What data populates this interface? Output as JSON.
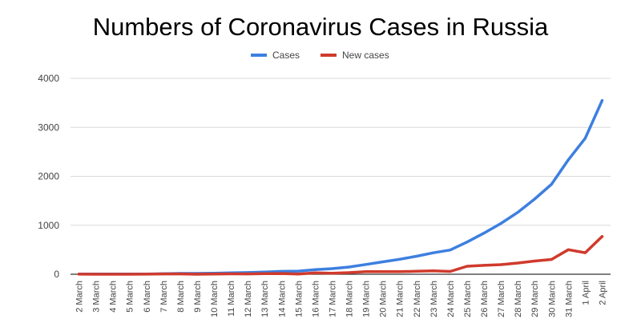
{
  "chart_data": {
    "type": "line",
    "title": "Numbers of Coronavirus Cases in Russia",
    "xlabel": "",
    "ylabel": "",
    "ylim": [
      0,
      4000
    ],
    "yticks": [
      0,
      1000,
      2000,
      3000,
      4000
    ],
    "grid": true,
    "legend_position": "top-center",
    "categories": [
      "2 March",
      "3 March",
      "4 March",
      "5 March",
      "6 March",
      "7 March",
      "8 March",
      "9 March",
      "10 March",
      "11 March",
      "12 March",
      "13 March",
      "14 March",
      "15 March",
      "16 March",
      "17 March",
      "18 March",
      "19 March",
      "20 March",
      "21 March",
      "22 March",
      "23 March",
      "24 March",
      "25 March",
      "26 March",
      "27 March",
      "28 March",
      "29 March",
      "30 March",
      "31 March",
      "1 April",
      "2 April"
    ],
    "series": [
      {
        "name": "Cases",
        "color": "#3d7fe0",
        "values": [
          3,
          3,
          3,
          3,
          4,
          10,
          17,
          17,
          20,
          28,
          34,
          45,
          59,
          63,
          93,
          114,
          147,
          199,
          253,
          306,
          367,
          438,
          495,
          658,
          840,
          1036,
          1264,
          1534,
          1836,
          2337,
          2777,
          3548
        ]
      },
      {
        "name": "New cases",
        "color": "#d03a2c",
        "values": [
          1,
          0,
          0,
          0,
          1,
          6,
          7,
          0,
          3,
          8,
          6,
          11,
          14,
          4,
          30,
          21,
          33,
          52,
          54,
          53,
          61,
          71,
          57,
          163,
          182,
          196,
          228,
          270,
          302,
          501,
          440,
          771
        ]
      }
    ]
  }
}
